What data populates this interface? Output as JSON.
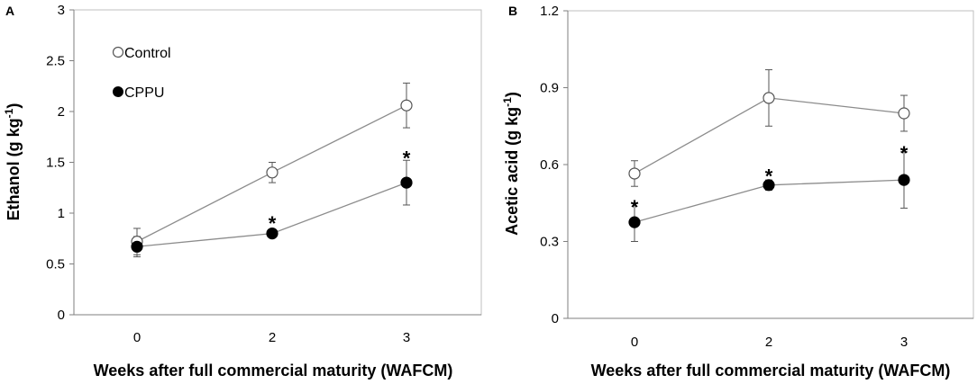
{
  "chart_data": [
    {
      "panel": "A",
      "type": "line",
      "xlabel": "Weeks after full  commercial maturity (WAFCM)",
      "ylabel": "Ethanol  (g kg",
      "ylabel_sup": "-1",
      "ylabel_end": ")",
      "categories": [
        "0",
        "2",
        "3"
      ],
      "ylim": [
        0,
        3
      ],
      "yticks": [
        0,
        0.5,
        1,
        1.5,
        2,
        2.5,
        3
      ],
      "ytick_labels": [
        "0",
        "0.5",
        "1",
        "1.5",
        "2",
        "2.5",
        "3"
      ],
      "series": [
        {
          "name": "Control",
          "marker": "open",
          "values": [
            0.72,
            1.4,
            2.06
          ],
          "errors": [
            0.13,
            0.1,
            0.22
          ]
        },
        {
          "name": "CPPU",
          "marker": "filled",
          "values": [
            0.67,
            0.8,
            1.3
          ],
          "errors": [
            0.1,
            0.03,
            0.22
          ]
        }
      ],
      "annotations": [
        {
          "text": "*",
          "index": 1,
          "y": 0.94
        },
        {
          "text": "*",
          "index": 2,
          "y": 1.58
        }
      ]
    },
    {
      "panel": "B",
      "type": "line",
      "xlabel": "Weeks after full  commercial maturity (WAFCM)",
      "ylabel": "Acetic acid  (g kg",
      "ylabel_sup": "-1",
      "ylabel_end": ")",
      "categories": [
        "0",
        "2",
        "3"
      ],
      "ylim": [
        0,
        1.2
      ],
      "yticks": [
        0,
        0.3,
        0.6,
        0.9,
        1.2
      ],
      "ytick_labels": [
        "0",
        "0.3",
        "0.6",
        "0.9",
        "1.2"
      ],
      "series": [
        {
          "name": "Control",
          "marker": "open",
          "values": [
            0.565,
            0.86,
            0.8
          ],
          "errors": [
            0.05,
            0.11,
            0.07
          ]
        },
        {
          "name": "CPPU",
          "marker": "filled",
          "values": [
            0.375,
            0.52,
            0.54
          ],
          "errors": [
            0.075,
            0.02,
            0.11
          ]
        }
      ],
      "annotations": [
        {
          "text": "*",
          "index": 0,
          "y": 0.45
        },
        {
          "text": "*",
          "index": 1,
          "y": 0.57
        },
        {
          "text": "*",
          "index": 2,
          "y": 0.66
        }
      ]
    }
  ],
  "legend": {
    "control_label": "Control",
    "cppu_label": "CPPU"
  }
}
